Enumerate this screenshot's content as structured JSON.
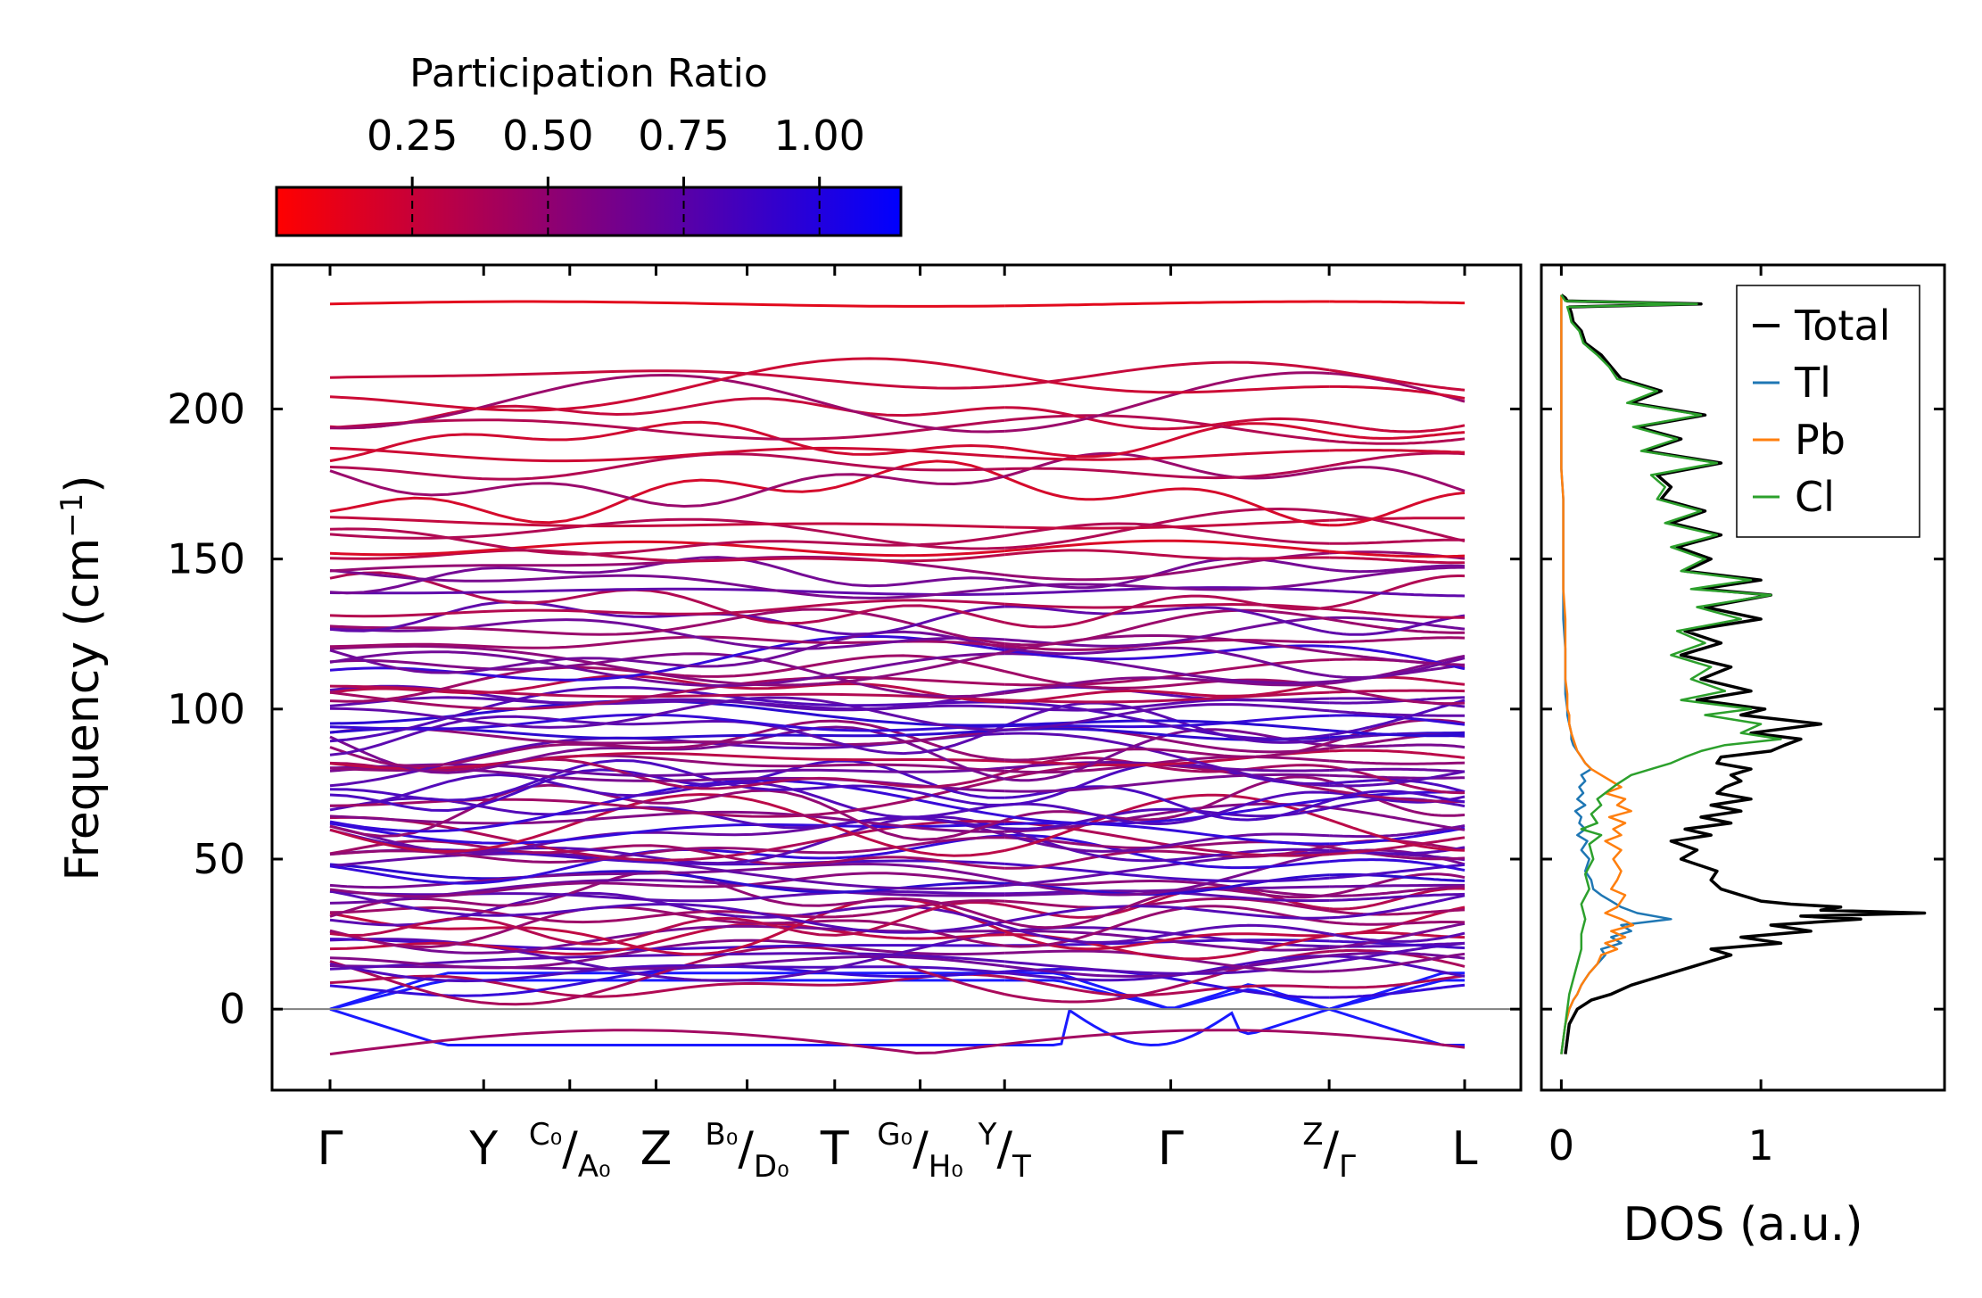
{
  "colorbar": {
    "title": "Participation Ratio",
    "ticks": [
      "0.25",
      "0.50",
      "0.75",
      "1.00"
    ],
    "tick_values": [
      0.25,
      0.5,
      0.75,
      1.0
    ],
    "range": [
      0.0,
      1.15
    ],
    "color_low": "#ff0000",
    "color_high": "#0000ff"
  },
  "chart_data": [
    {
      "type": "line",
      "name": "phonon-dispersion",
      "title": "",
      "xlabel": "",
      "ylabel": "Frequency (cm⁻¹)",
      "ylabel_parts": {
        "base": "Frequency (cm",
        "sup": "−1",
        "close": ")"
      },
      "ylim": [
        -27,
        248
      ],
      "yticks": [
        0,
        50,
        100,
        150,
        200
      ],
      "ytick_labels": [
        "0",
        "50",
        "100",
        "150",
        "200"
      ],
      "zero_line": true,
      "segments": [
        {
          "from": "Γ",
          "to": "Y",
          "start": 0.0,
          "end": 0.1354
        },
        {
          "from": "Y",
          "to": "C₀/A₀",
          "start": 0.1354,
          "end": 0.2113
        },
        {
          "from": "C₀/A₀",
          "to": "Z",
          "start": 0.2113,
          "end": 0.2873
        },
        {
          "from": "Z",
          "to": "B₀/D₀",
          "start": 0.2873,
          "end": 0.3676
        },
        {
          "from": "B₀/D₀",
          "to": "T",
          "start": 0.3676,
          "end": 0.4448
        },
        {
          "from": "T",
          "to": "G₀/H₀",
          "start": 0.4448,
          "end": 0.5201
        },
        {
          "from": "G₀/H₀",
          "to": "Y/T",
          "start": 0.5201,
          "end": 0.5945
        },
        {
          "from": "T",
          "to": "Γ",
          "start": 0.5945,
          "end": 0.741
        },
        {
          "from": "Γ",
          "to": "Z/Γ",
          "start": 0.741,
          "end": 0.8806
        },
        {
          "from": "Γ",
          "to": "L",
          "start": 0.8806,
          "end": 1.0
        }
      ],
      "kpoints": [
        {
          "pos": 0.0,
          "label": "Γ"
        },
        {
          "pos": 0.1354,
          "label": "Y"
        },
        {
          "pos": 0.2113,
          "label": "C₀/A₀"
        },
        {
          "pos": 0.2873,
          "label": "Z"
        },
        {
          "pos": 0.3676,
          "label": "B₀/D₀"
        },
        {
          "pos": 0.4448,
          "label": "T"
        },
        {
          "pos": 0.5201,
          "label": "G₀/H₀"
        },
        {
          "pos": 0.5945,
          "label": "Y/T"
        },
        {
          "pos": 0.741,
          "label": "Γ"
        },
        {
          "pos": 0.8806,
          "label": "Z/Γ"
        },
        {
          "pos": 1.0,
          "label": "L"
        }
      ],
      "breaks": [
        0.5945,
        0.8806
      ],
      "bands": {
        "count": 96,
        "frequency_range": [
          -15,
          236
        ],
        "highest_band": {
          "value": 235,
          "participation_ratio": 0.04
        },
        "acoustic_near_gamma": "blue branches near 0 cm⁻¹ with participation ratio ~1.0",
        "imaginary_modes_min": -15,
        "low_pr_dominant_region": [
          150,
          236
        ],
        "mixed_pr_region": [
          10,
          120
        ]
      }
    },
    {
      "type": "line",
      "name": "phonon-dos",
      "title": "",
      "xlabel": "DOS (a.u.)",
      "ylabel": "",
      "xlim": [
        -0.1,
        1.92
      ],
      "ylim": [
        -27,
        248
      ],
      "xticks": [
        0,
        1
      ],
      "xtick_labels": [
        "0",
        "1"
      ],
      "legend_position": "top-right",
      "series": [
        {
          "name": "Total",
          "color": "#000000",
          "y": [
            -15,
            -10,
            -5,
            0,
            3,
            5,
            8,
            10,
            12,
            15,
            18,
            20,
            22,
            24,
            26,
            28,
            30,
            31,
            32,
            33,
            34,
            35,
            36,
            38,
            40,
            43,
            46,
            50,
            53,
            56,
            58,
            60,
            62,
            64,
            66,
            68,
            70,
            72,
            74,
            76,
            78,
            80,
            82,
            84,
            86,
            88,
            90,
            92,
            95,
            98,
            100,
            103,
            106,
            110,
            114,
            118,
            122,
            126,
            130,
            134,
            138,
            140,
            143,
            146,
            150,
            154,
            158,
            162,
            166,
            170,
            174,
            178,
            182,
            186,
            190,
            194,
            198,
            202,
            206,
            210,
            214,
            218,
            222,
            226,
            229,
            232,
            234,
            235,
            236,
            237,
            238
          ],
          "x": [
            0.02,
            0.03,
            0.04,
            0.08,
            0.15,
            0.25,
            0.35,
            0.45,
            0.55,
            0.7,
            0.85,
            0.75,
            1.1,
            0.9,
            1.25,
            1.05,
            1.5,
            1.2,
            1.82,
            1.3,
            1.4,
            1.15,
            1.0,
            0.9,
            0.8,
            0.75,
            0.78,
            0.6,
            0.68,
            0.55,
            0.75,
            0.62,
            0.85,
            0.7,
            0.9,
            0.75,
            0.95,
            0.78,
            0.82,
            0.9,
            0.85,
            0.95,
            0.78,
            0.8,
            1.05,
            1.12,
            1.2,
            0.95,
            1.3,
            0.9,
            1.02,
            0.68,
            0.95,
            0.7,
            0.85,
            0.6,
            0.8,
            0.62,
            1.0,
            0.72,
            1.05,
            0.7,
            1.0,
            0.62,
            0.75,
            0.58,
            0.8,
            0.55,
            0.72,
            0.5,
            0.55,
            0.48,
            0.8,
            0.42,
            0.6,
            0.38,
            0.72,
            0.35,
            0.5,
            0.3,
            0.25,
            0.2,
            0.12,
            0.1,
            0.06,
            0.05,
            0.04,
            0.7,
            0.03,
            0.02,
            0.0
          ]
        },
        {
          "name": "Tl",
          "color": "#1f77b4",
          "y": [
            -15,
            -10,
            -5,
            0,
            3,
            5,
            8,
            10,
            12,
            15,
            18,
            20,
            22,
            24,
            26,
            28,
            30,
            32,
            34,
            36,
            38,
            40,
            43,
            46,
            50,
            53,
            56,
            58,
            60,
            62,
            64,
            66,
            68,
            70,
            72,
            74,
            76,
            78,
            80,
            82,
            84,
            86,
            88,
            90,
            92,
            95,
            98,
            100,
            105,
            110,
            120,
            130,
            140,
            150,
            160,
            170,
            180,
            190,
            200,
            210,
            220,
            230,
            235,
            238
          ],
          "x": [
            0.0,
            0.01,
            0.02,
            0.04,
            0.06,
            0.08,
            0.1,
            0.12,
            0.14,
            0.18,
            0.22,
            0.2,
            0.3,
            0.25,
            0.35,
            0.3,
            0.55,
            0.38,
            0.3,
            0.25,
            0.2,
            0.16,
            0.15,
            0.12,
            0.14,
            0.1,
            0.13,
            0.08,
            0.12,
            0.09,
            0.1,
            0.07,
            0.12,
            0.08,
            0.11,
            0.09,
            0.12,
            0.1,
            0.15,
            0.12,
            0.1,
            0.08,
            0.06,
            0.05,
            0.05,
            0.04,
            0.03,
            0.03,
            0.02,
            0.02,
            0.02,
            0.01,
            0.01,
            0.01,
            0.01,
            0.01,
            0.0,
            0.0,
            0.0,
            0.0,
            0.0,
            0.0,
            0.0,
            0.0
          ]
        },
        {
          "name": "Pb",
          "color": "#ff7f0e",
          "y": [
            -15,
            -10,
            -5,
            0,
            3,
            5,
            8,
            10,
            12,
            15,
            18,
            20,
            22,
            24,
            26,
            28,
            30,
            32,
            34,
            36,
            38,
            40,
            43,
            46,
            50,
            53,
            56,
            58,
            60,
            62,
            64,
            66,
            68,
            70,
            72,
            74,
            76,
            78,
            80,
            82,
            84,
            86,
            88,
            90,
            92,
            95,
            98,
            100,
            105,
            110,
            120,
            130,
            140,
            150,
            160,
            170,
            180,
            190,
            200,
            210,
            220,
            230,
            235,
            238
          ],
          "x": [
            0.0,
            0.01,
            0.02,
            0.04,
            0.06,
            0.08,
            0.1,
            0.12,
            0.14,
            0.18,
            0.2,
            0.28,
            0.22,
            0.32,
            0.25,
            0.36,
            0.3,
            0.22,
            0.28,
            0.3,
            0.32,
            0.25,
            0.28,
            0.3,
            0.26,
            0.3,
            0.22,
            0.3,
            0.26,
            0.32,
            0.24,
            0.35,
            0.28,
            0.32,
            0.22,
            0.3,
            0.25,
            0.2,
            0.15,
            0.12,
            0.1,
            0.08,
            0.07,
            0.06,
            0.05,
            0.04,
            0.04,
            0.03,
            0.03,
            0.02,
            0.02,
            0.02,
            0.01,
            0.01,
            0.01,
            0.01,
            0.0,
            0.0,
            0.0,
            0.0,
            0.0,
            0.0,
            0.0,
            0.0
          ]
        },
        {
          "name": "Cl",
          "color": "#2ca02c",
          "y": [
            -15,
            -10,
            -5,
            0,
            5,
            10,
            15,
            20,
            25,
            30,
            35,
            40,
            45,
            50,
            55,
            58,
            60,
            62,
            65,
            68,
            70,
            72,
            75,
            78,
            80,
            82,
            84,
            86,
            88,
            90,
            92,
            95,
            98,
            100,
            103,
            106,
            110,
            114,
            118,
            122,
            126,
            130,
            134,
            138,
            140,
            143,
            146,
            150,
            154,
            158,
            162,
            166,
            170,
            174,
            178,
            182,
            186,
            190,
            194,
            198,
            202,
            206,
            210,
            214,
            218,
            222,
            226,
            229,
            232,
            234,
            235,
            236,
            237,
            238
          ],
          "x": [
            0.0,
            0.01,
            0.02,
            0.03,
            0.04,
            0.06,
            0.08,
            0.1,
            0.1,
            0.12,
            0.1,
            0.14,
            0.12,
            0.16,
            0.14,
            0.2,
            0.1,
            0.18,
            0.15,
            0.2,
            0.18,
            0.22,
            0.28,
            0.35,
            0.45,
            0.55,
            0.62,
            0.7,
            0.82,
            1.1,
            0.9,
            1.0,
            0.72,
            0.95,
            0.6,
            0.82,
            0.65,
            0.75,
            0.55,
            0.72,
            0.58,
            0.9,
            0.68,
            1.05,
            0.65,
            0.95,
            0.6,
            0.72,
            0.55,
            0.78,
            0.52,
            0.7,
            0.48,
            0.52,
            0.45,
            0.78,
            0.4,
            0.58,
            0.36,
            0.7,
            0.33,
            0.48,
            0.28,
            0.24,
            0.18,
            0.11,
            0.09,
            0.05,
            0.04,
            0.03,
            0.68,
            0.02,
            0.01,
            0.0
          ]
        }
      ]
    }
  ]
}
